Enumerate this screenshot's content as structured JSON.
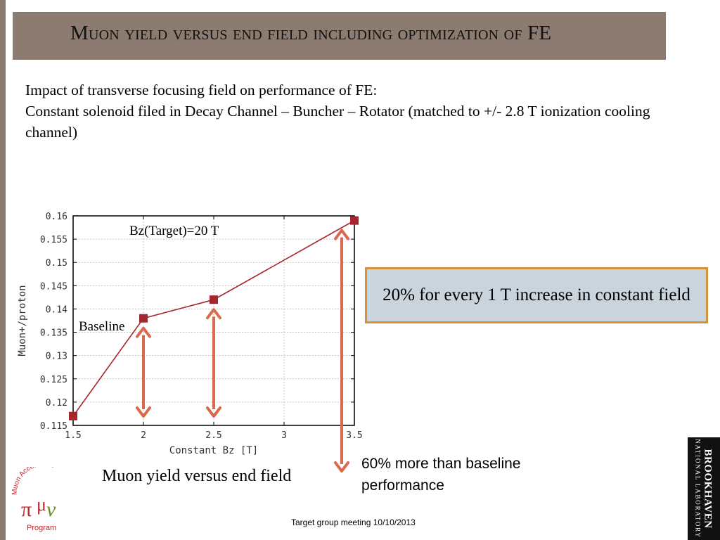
{
  "slide": {
    "title": "Muon yield versus end field including optimization of FE",
    "body_lines": [
      "Impact of transverse focusing field on performance of FE:",
      "Constant solenoid filed in Decay Channel – Buncher – Rotator (matched to +/- 2.8 T ionization cooling channel)"
    ],
    "callout": "20% for every 1 T increase in constant field",
    "annotation_60": "60% more than baseline performance",
    "caption": "Muon yield versus end field",
    "footer": "Target group meeting 10/10/2013",
    "logo_left": {
      "top": "Muon Accelerator",
      "bottom": "Program",
      "colors": {
        "text": "#c0262b",
        "pi": "#c0262b",
        "mu": "#3f7a2b",
        "nu": "#6a8f2a"
      }
    },
    "logo_right": {
      "main": "BROOKHAVEN",
      "sub": "NATIONAL LABORATORY"
    }
  },
  "chart_data": {
    "type": "line",
    "title": "",
    "xlabel": "Constant Bz [T]",
    "ylabel": "Muon+/proton",
    "xlim": [
      1.5,
      3.5
    ],
    "ylim": [
      0.115,
      0.16
    ],
    "xticks": [
      "1.5",
      "2",
      "2.5",
      "3",
      "3.5"
    ],
    "yticks": [
      "0.115",
      "0.12",
      "0.125",
      "0.13",
      "0.135",
      "0.14",
      "0.145",
      "0.15",
      "0.155",
      "0.16"
    ],
    "grid": true,
    "series": [
      {
        "x": [
          1.5,
          2.0,
          2.5,
          3.5
        ],
        "y": [
          0.117,
          0.138,
          0.142,
          0.159
        ]
      }
    ],
    "annotations": [
      {
        "text": "Bz(Target)=20 T"
      },
      {
        "text": "Baseline"
      }
    ],
    "colors": {
      "line": "#a5262c",
      "marker": "#a5262c",
      "arrow": "#d96a4f",
      "grid": "#b8b8b8"
    }
  }
}
